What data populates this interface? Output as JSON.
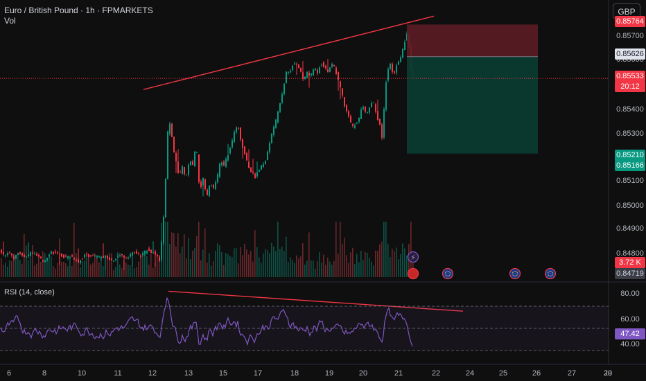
{
  "header": {
    "symbol_title": "Euro / British Pound · 1h · FPMARKETS",
    "volume_label": "Vol",
    "currency_button": "GBP"
  },
  "rsi": {
    "title": "RSI (14, close)",
    "current_value": "47.42"
  },
  "price_axis": {
    "ticks": [
      "0.85700",
      "0.85600",
      "0.85400",
      "0.85300",
      "0.85100",
      "0.85000",
      "0.84900",
      "0.84800"
    ],
    "labels": {
      "stop_loss": "0.85764",
      "entry": "0.85626",
      "current_price": "0.85533",
      "countdown": "20:12",
      "take_profit": "0.85210",
      "lower_green": "0.85166",
      "volume": "3.72 K",
      "bottom_price": "0.84719"
    }
  },
  "rsi_axis": {
    "ticks": [
      "80.00",
      "60.00",
      "40.00"
    ]
  },
  "time_axis": {
    "ticks": [
      "6",
      "8",
      "10",
      "11",
      "12",
      "13",
      "15",
      "17",
      "18",
      "19",
      "20",
      "21",
      "22",
      "24",
      "25",
      "26",
      "27",
      "29",
      "Ju"
    ]
  },
  "colors": {
    "background": "#0f0f0f",
    "bull": "#089981",
    "bear": "#f23645",
    "trendline": "#f23645",
    "rsi_line": "#7e57c2",
    "stop_zone": "#5c1c23",
    "profit_zone": "#0b3b31"
  },
  "icons": [
    "lightning-event-icon",
    "uk-flag-event-icon",
    "eu-flag-event-icon"
  ],
  "chart_data": {
    "type": "candlestick",
    "symbol": "EURGBP",
    "interval": "1h",
    "yrange": [
      0.8468,
      0.8578
    ],
    "price_levels": {
      "stop_loss": 0.85764,
      "entry": 0.85626,
      "current": 0.85533,
      "take_profit": 0.8521,
      "lower": 0.85166
    },
    "price_path": [
      [
        0,
        0.848
      ],
      [
        8,
        0.8477
      ],
      [
        15,
        0.8479
      ],
      [
        22,
        0.8476
      ],
      [
        30,
        0.8479
      ],
      [
        38,
        0.8476
      ],
      [
        46,
        0.84785
      ],
      [
        56,
        0.8477
      ],
      [
        65,
        0.84745
      ],
      [
        75,
        0.8479
      ],
      [
        85,
        0.8478
      ],
      [
        95,
        0.84765
      ],
      [
        105,
        0.8477
      ],
      [
        115,
        0.84745
      ],
      [
        125,
        0.84775
      ],
      [
        135,
        0.8477
      ],
      [
        145,
        0.84765
      ],
      [
        155,
        0.8477
      ],
      [
        165,
        0.84745
      ],
      [
        175,
        0.8478
      ],
      [
        185,
        0.8476
      ],
      [
        195,
        0.8479
      ],
      [
        205,
        0.8477
      ],
      [
        215,
        0.848
      ],
      [
        225,
        0.8478
      ],
      [
        232,
        0.8475
      ],
      [
        237,
        0.8488
      ],
      [
        241,
        0.851
      ],
      [
        244,
        0.853
      ],
      [
        248,
        0.8535
      ],
      [
        252,
        0.8522
      ],
      [
        256,
        0.8518
      ],
      [
        260,
        0.8511
      ],
      [
        265,
        0.8515
      ],
      [
        270,
        0.851
      ],
      [
        275,
        0.8518
      ],
      [
        280,
        0.8516
      ],
      [
        285,
        0.8525
      ],
      [
        290,
        0.8505
      ],
      [
        295,
        0.851
      ],
      [
        300,
        0.8502
      ],
      [
        305,
        0.8508
      ],
      [
        310,
        0.8506
      ],
      [
        315,
        0.851
      ],
      [
        320,
        0.8518
      ],
      [
        325,
        0.8516
      ],
      [
        330,
        0.852
      ],
      [
        335,
        0.8524
      ],
      [
        340,
        0.853
      ],
      [
        345,
        0.8533
      ],
      [
        350,
        0.8526
      ],
      [
        355,
        0.8521
      ],
      [
        360,
        0.8516
      ],
      [
        365,
        0.8513
      ],
      [
        370,
        0.8511
      ],
      [
        375,
        0.8514
      ],
      [
        380,
        0.8516
      ],
      [
        385,
        0.8518
      ],
      [
        390,
        0.8524
      ],
      [
        395,
        0.8531
      ],
      [
        400,
        0.8535
      ],
      [
        405,
        0.8542
      ],
      [
        410,
        0.8548
      ],
      [
        415,
        0.8556
      ],
      [
        420,
        0.8556
      ],
      [
        425,
        0.856
      ],
      [
        430,
        0.8559
      ],
      [
        435,
        0.8557
      ],
      [
        440,
        0.8552
      ],
      [
        445,
        0.8556
      ],
      [
        450,
        0.8554
      ],
      [
        455,
        0.8558
      ],
      [
        460,
        0.8556
      ],
      [
        465,
        0.856
      ],
      [
        470,
        0.8558
      ],
      [
        475,
        0.8556
      ],
      [
        480,
        0.856
      ],
      [
        485,
        0.8558
      ],
      [
        490,
        0.8552
      ],
      [
        495,
        0.8547
      ],
      [
        500,
        0.854
      ],
      [
        505,
        0.8537
      ],
      [
        510,
        0.8532
      ],
      [
        515,
        0.8534
      ],
      [
        520,
        0.8536
      ],
      [
        525,
        0.8542
      ],
      [
        530,
        0.8538
      ],
      [
        535,
        0.8541
      ],
      [
        540,
        0.8544
      ],
      [
        545,
        0.8538
      ],
      [
        550,
        0.8533
      ],
      [
        553,
        0.8528
      ],
      [
        556,
        0.854
      ],
      [
        560,
        0.8556
      ],
      [
        565,
        0.856
      ],
      [
        570,
        0.8554
      ],
      [
        575,
        0.856
      ],
      [
        580,
        0.8562
      ],
      [
        585,
        0.8568
      ],
      [
        590,
        0.8574
      ],
      [
        593,
        0.8564
      ],
      [
        596,
        0.85533
      ]
    ],
    "trendlines": [
      {
        "pane": "price",
        "from": [
          207,
          0.85485
        ],
        "to": [
          626,
          0.858
        ]
      },
      {
        "pane": "rsi",
        "from": [
          243,
          83.5
        ],
        "to": [
          668,
          65.5
        ]
      }
    ],
    "rsi_ylim": [
      20,
      90
    ],
    "rsi_levels": [
      30,
      50,
      70
    ],
    "volume": {
      "last_value": "3.72 K"
    }
  }
}
